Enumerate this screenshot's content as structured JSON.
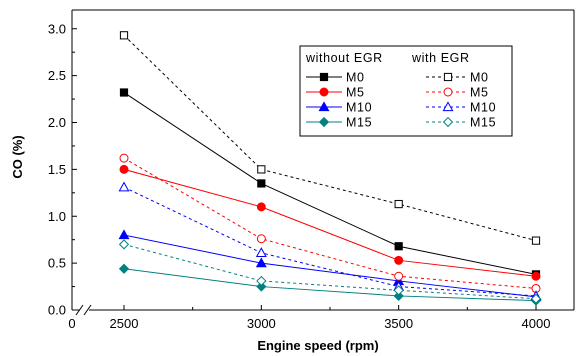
{
  "chart_data": {
    "type": "line",
    "xlabel": "Engine speed (rpm)",
    "ylabel": "CO (%)",
    "x": [
      2500,
      3000,
      3500,
      4000
    ],
    "x_ticks": [
      "0",
      "2500",
      "3000",
      "3500",
      "4000"
    ],
    "y_ticks": [
      "0.0",
      "0.5",
      "1.0",
      "1.5",
      "2.0",
      "2.5",
      "3.0"
    ],
    "ylim": [
      0,
      3.2
    ],
    "grid": false,
    "legend_position": "top-right",
    "legend_headers": [
      "without EGR",
      "with EGR"
    ],
    "series": [
      {
        "name": "M0",
        "group": "without EGR",
        "color": "#000000",
        "marker": "square-filled",
        "dash": "solid",
        "values": [
          2.32,
          1.35,
          0.68,
          0.38
        ]
      },
      {
        "name": "M5",
        "group": "without EGR",
        "color": "#ff0000",
        "marker": "circle-filled",
        "dash": "solid",
        "values": [
          1.5,
          1.1,
          0.53,
          0.36
        ]
      },
      {
        "name": "M10",
        "group": "without EGR",
        "color": "#0000ff",
        "marker": "triangle-filled",
        "dash": "solid",
        "values": [
          0.8,
          0.5,
          0.31,
          0.14
        ]
      },
      {
        "name": "M15",
        "group": "without EGR",
        "color": "#008080",
        "marker": "diamond-filled",
        "dash": "solid",
        "values": [
          0.44,
          0.25,
          0.15,
          0.1
        ]
      },
      {
        "name": "M0",
        "group": "with EGR",
        "color": "#000000",
        "marker": "square-open",
        "dash": "dashed",
        "values": [
          2.93,
          1.5,
          1.13,
          0.74
        ]
      },
      {
        "name": "M5",
        "group": "with EGR",
        "color": "#ff0000",
        "marker": "circle-open",
        "dash": "dashed",
        "values": [
          1.62,
          0.76,
          0.36,
          0.23
        ]
      },
      {
        "name": "M10",
        "group": "with EGR",
        "color": "#0000ff",
        "marker": "triangle-open",
        "dash": "dashed",
        "values": [
          1.31,
          0.61,
          0.25,
          0.15
        ]
      },
      {
        "name": "M15",
        "group": "with EGR",
        "color": "#008080",
        "marker": "diamond-open",
        "dash": "dashed",
        "values": [
          0.7,
          0.31,
          0.21,
          0.12
        ]
      }
    ]
  }
}
